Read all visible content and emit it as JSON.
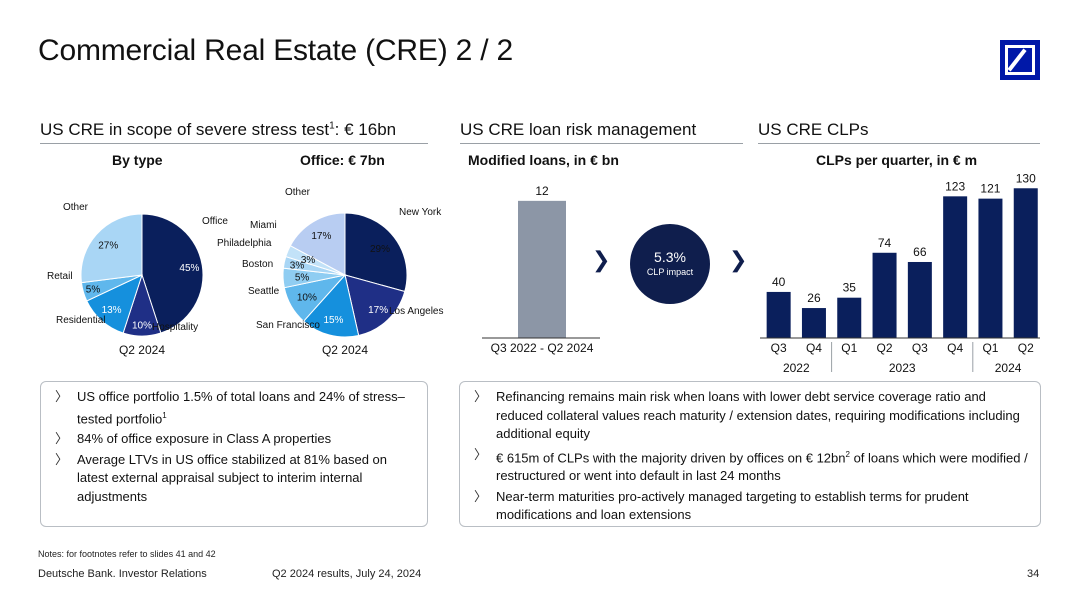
{
  "header": {
    "title": "Commercial Real Estate (CRE) 2 / 2"
  },
  "sections": {
    "stress": {
      "title": "US CRE in scope of severe stress test",
      "footnote": "1",
      "suffix": ": € 16bn"
    },
    "loan": {
      "title": "US CRE loan risk management"
    },
    "clps": {
      "title": "US CRE CLPs"
    }
  },
  "chart_data": [
    {
      "type": "pie",
      "title": "By type",
      "caption": "Q2 2024",
      "slices": [
        {
          "label": "Office",
          "value": 45,
          "value_label": "45%",
          "color": "#0a1f5c"
        },
        {
          "label": "Hospitality",
          "value": 10,
          "value_label": "10%",
          "color": "#1f2f86"
        },
        {
          "label": "Residential",
          "value": 13,
          "value_label": "13%",
          "color": "#1590dd"
        },
        {
          "label": "Retail",
          "value": 5,
          "value_label": "5%",
          "color": "#5fb7ec"
        },
        {
          "label": "Other",
          "value": 27,
          "value_label": "27%",
          "color": "#a9d6f5"
        }
      ]
    },
    {
      "type": "pie",
      "title": "Office: € 7bn",
      "caption": "Q2 2024",
      "slices": [
        {
          "label": "New York",
          "value": 29,
          "value_label": "29%",
          "color": "#0a1f5c"
        },
        {
          "label": "Los Angeles",
          "value": 17,
          "value_label": "17%",
          "color": "#1f2f86"
        },
        {
          "label": "San Francisco",
          "value": 15,
          "value_label": "15%",
          "color": "#1590dd"
        },
        {
          "label": "Seattle",
          "value": 10,
          "value_label": "10%",
          "color": "#5fb7ec"
        },
        {
          "label": "Boston",
          "value": 5,
          "value_label": "5%",
          "color": "#8fcdf2"
        },
        {
          "label": "Philadelphia",
          "value": 3,
          "value_label": "3%",
          "color": "#a9d6f5"
        },
        {
          "label": "Miami",
          "value": 3,
          "value_label": "3%",
          "color": "#c2e2f8"
        },
        {
          "label": "Other",
          "value": 17,
          "value_label": "17%",
          "color": "#b8cdf2"
        }
      ]
    },
    {
      "type": "bar",
      "title": "Modified loans, in € bn",
      "categories": [
        "Q3 2022 - Q2 2024"
      ],
      "values": [
        12
      ],
      "value_labels": [
        "12"
      ],
      "ylim": [
        0,
        14
      ],
      "color": "#8c96a6"
    },
    {
      "type": "bar",
      "title": "CLPs per quarter, in € m",
      "categories": [
        "Q3",
        "Q4",
        "Q1",
        "Q2",
        "Q3",
        "Q4",
        "Q1",
        "Q2"
      ],
      "values": [
        40,
        26,
        35,
        74,
        66,
        123,
        121,
        130
      ],
      "value_labels": [
        "40",
        "26",
        "35",
        "74",
        "66",
        "123",
        "121",
        "130"
      ],
      "groups": [
        {
          "label": "2022",
          "span": 2
        },
        {
          "label": "2023",
          "span": 4
        },
        {
          "label": "2024",
          "span": 2
        }
      ],
      "ylim": [
        0,
        145
      ],
      "color": "#0a1f5c"
    }
  ],
  "impact": {
    "value": "5.3%",
    "label": "CLP impact",
    "color": "#0f1e4d"
  },
  "arrows": {
    "glyph": "❯"
  },
  "bullets_left": [
    {
      "text": "US office portfolio 1.5% of total loans and 24% of stress–tested portfolio",
      "sup": "1"
    },
    {
      "text": "84% of office exposure in Class A properties",
      "sup": ""
    },
    {
      "text": "Average LTVs in US office stabilized at 81% based on latest external appraisal subject to interim internal adjustments",
      "sup": ""
    }
  ],
  "bullets_right": [
    {
      "text_before": "Refinancing remains main risk when loans with lower debt service coverage ratio and reduced collateral values reach maturity / extension dates, requiring modifications including additional equity",
      "sup": "",
      "text_after": ""
    },
    {
      "text_before": "€ 615m of CLPs with the majority driven by offices on € 12bn",
      "sup": "2",
      "text_after": " of loans which were modified / restructured or went into default in last 24 months"
    },
    {
      "text_before": "Near-term maturities pro-actively managed targeting to establish terms for prudent modifications and loan extensions",
      "sup": "",
      "text_after": ""
    }
  ],
  "bullet_glyph": "〉",
  "notes": "Notes: for footnotes refer to slides 41 and 42",
  "footer": {
    "company": "Deutsche Bank. Investor Relations",
    "event": "Q2 2024 results, July 24, 2024",
    "page": "34"
  },
  "colors": {
    "accent": "#0018a8",
    "rule": "#9aa0a6"
  }
}
